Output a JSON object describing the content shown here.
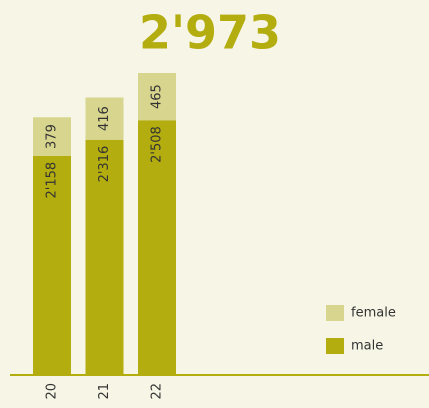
{
  "chart_data": {
    "type": "bar",
    "title": "2'973",
    "categories": [
      "20",
      "21",
      "22"
    ],
    "series": [
      {
        "name": "male",
        "color": "#b3ad0f",
        "values": [
          2158,
          2316,
          2508
        ],
        "value_labels": [
          "2'158",
          "2'316",
          "2'508"
        ]
      },
      {
        "name": "female",
        "color": "#d8d58e",
        "values": [
          379,
          416,
          465
        ]
      }
    ],
    "stacked": true
  }
}
